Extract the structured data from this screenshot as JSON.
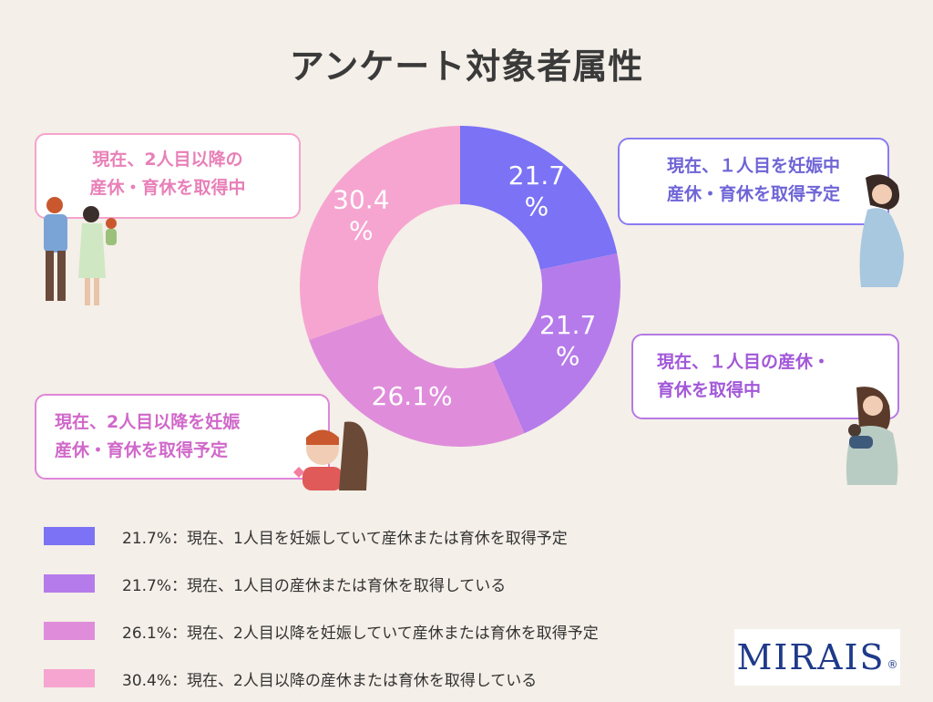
{
  "title": "アンケート対象者属性",
  "callouts": {
    "second_leave": [
      "現在、2人目以降の",
      "産休・育休を取得中"
    ],
    "first_pregnant": [
      "現在、１人目を妊娠中",
      "産休・育休を取得予定"
    ],
    "first_leave": [
      "現在、１人目の産休・",
      "育休を取得中"
    ],
    "second_pregnant": [
      "現在、2人目以降を妊娠",
      "産休・育休を取得予定"
    ]
  },
  "legend": [
    {
      "color": "#7b72f5",
      "text": "21.7%：現在、1人目を妊娠していて産休または育休を取得予定"
    },
    {
      "color": "#b67bea",
      "text": "21.7%：現在、1人目の産休または育休を取得している"
    },
    {
      "color": "#df8ddb",
      "text": "26.1%：現在、2人目以降を妊娠していて産休または育休を取得予定"
    },
    {
      "color": "#f6a5d0",
      "text": "30.4%：現在、2人目以降の産休または育休を取得している"
    }
  ],
  "logo": {
    "text": "MIRAIS",
    "reg": "®"
  },
  "chart_data": {
    "type": "pie",
    "donut": true,
    "categories": [
      "現在、1人目を妊娠していて産休または育休を取得予定",
      "現在、1人目の産休または育休を取得している",
      "現在、2人目以降を妊娠していて産休または育休を取得予定",
      "現在、2人目以降の産休または育休を取得している"
    ],
    "values": [
      21.7,
      21.7,
      26.1,
      30.4
    ],
    "labels": [
      [
        "21.7",
        "%"
      ],
      [
        "21.7",
        "%"
      ],
      [
        "26.1%"
      ],
      [
        "30.4",
        "%"
      ]
    ],
    "colors": [
      "#7b72f5",
      "#b67bea",
      "#df8ddb",
      "#f6a5d0"
    ]
  }
}
